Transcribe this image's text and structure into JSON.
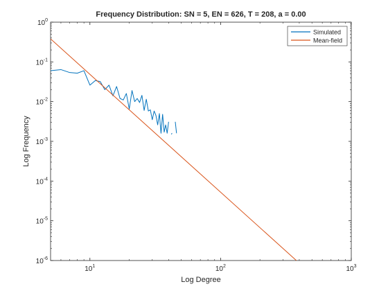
{
  "chart_data": {
    "type": "line",
    "title": "Frequency Distribution: SN = 5, EN = 626, T = 208, a = 0.00",
    "xlabel": "Log Degree",
    "ylabel": "Log Frequency",
    "xscale": "log",
    "yscale": "log",
    "xlim": [
      5,
      1000
    ],
    "ylim": [
      1e-06,
      1
    ],
    "grid": false,
    "legend_position": "top-right",
    "x_ticks": [
      {
        "value": 10,
        "base": "10",
        "exp": "1"
      },
      {
        "value": 100,
        "base": "10",
        "exp": "2"
      },
      {
        "value": 1000,
        "base": "10",
        "exp": "3"
      }
    ],
    "y_ticks": [
      {
        "value": 1e-06,
        "base": "10",
        "exp": "-6"
      },
      {
        "value": 1e-05,
        "base": "10",
        "exp": "-5"
      },
      {
        "value": 0.0001,
        "base": "10",
        "exp": "-4"
      },
      {
        "value": 0.001,
        "base": "10",
        "exp": "-3"
      },
      {
        "value": 0.01,
        "base": "10",
        "exp": "-2"
      },
      {
        "value": 0.1,
        "base": "10",
        "exp": "-1"
      },
      {
        "value": 1,
        "base": "10",
        "exp": "0"
      }
    ],
    "series": [
      {
        "name": "Simulated",
        "color": "#0072BD",
        "segments": [
          [
            [
              5,
              0.06
            ],
            [
              6,
              0.064
            ],
            [
              7,
              0.054
            ],
            [
              8,
              0.052
            ],
            [
              9,
              0.06
            ],
            [
              10,
              0.026
            ],
            [
              11,
              0.034
            ],
            [
              12,
              0.032
            ],
            [
              13,
              0.02
            ],
            [
              14,
              0.026
            ],
            [
              15,
              0.014
            ],
            [
              16,
              0.024
            ],
            [
              17,
              0.012
            ],
            [
              18,
              0.011
            ],
            [
              19,
              0.016
            ],
            [
              20,
              0.0065
            ],
            [
              21,
              0.019
            ],
            [
              22,
              0.01
            ],
            [
              23,
              0.012
            ],
            [
              24,
              0.0095
            ],
            [
              25,
              0.0144
            ],
            [
              26,
              0.006
            ],
            [
              27,
              0.0115
            ],
            [
              28,
              0.0058
            ],
            [
              29,
              0.0062
            ],
            [
              30,
              0.0035
            ],
            [
              31,
              0.0058
            ],
            [
              32,
              0.0045
            ],
            [
              33,
              0.0026
            ],
            [
              34,
              0.005
            ],
            [
              35,
              0.0016
            ],
            [
              36,
              0.0048
            ],
            [
              37,
              0.0017
            ],
            [
              38,
              0.0026
            ],
            [
              39,
              0.0016
            ],
            [
              40,
              0.0031
            ]
          ],
          [
            [
              42,
              0.0015
            ],
            [
              42.5,
              0.0016
            ]
          ],
          [
            [
              45,
              0.0031
            ],
            [
              46,
              0.0016
            ]
          ]
        ]
      },
      {
        "name": "Mean-field",
        "color": "#D95319",
        "segments": [
          [
            [
              5,
              0.38
            ],
            [
              380,
              1e-06
            ]
          ]
        ]
      }
    ]
  }
}
